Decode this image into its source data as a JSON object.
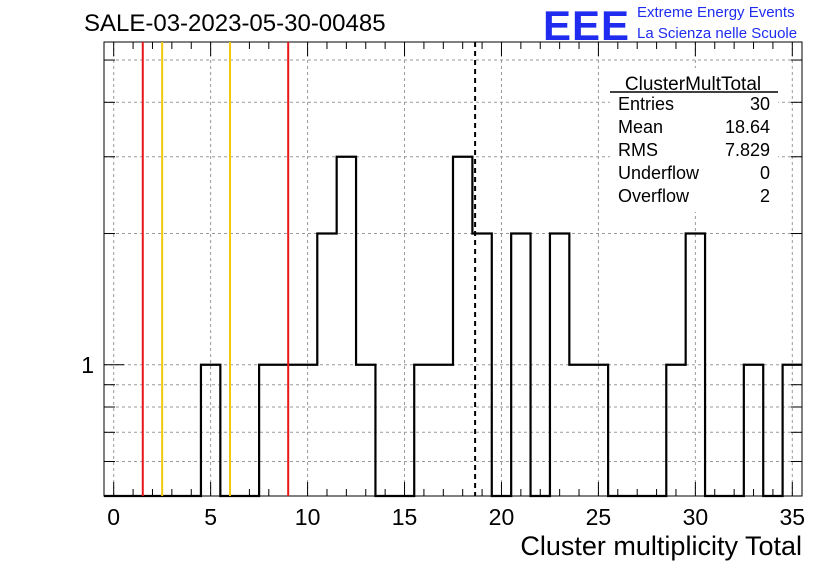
{
  "header": {
    "title": "SALE-03-2023-05-30-00485",
    "logo_text": "EEE",
    "logo_line1": "Extreme Energy Events",
    "logo_line2": "La Scienza nelle Scuole",
    "logo_color": "#1f2cf0"
  },
  "stats_box": {
    "name": "ClusterMultTotal",
    "rows": [
      {
        "label": "Entries",
        "value": "30"
      },
      {
        "label": "Mean",
        "value": "18.64"
      },
      {
        "label": "RMS",
        "value": "7.829"
      },
      {
        "label": "Underflow",
        "value": "0"
      },
      {
        "label": "Overflow",
        "value": "2"
      }
    ]
  },
  "chart_data": {
    "type": "histogram",
    "title": "SALE-03-2023-05-30-00485",
    "xlabel": "Cluster multiplicity Total",
    "ylabel": "",
    "x_range": [
      -0.5,
      35.5
    ],
    "y_scale": "log",
    "y_range": [
      0.5,
      5.5
    ],
    "bin_edges_start": -0.5,
    "bin_width": 1,
    "counts": [
      0,
      0,
      0,
      0,
      0,
      1,
      0,
      0,
      1,
      1,
      1,
      2,
      3,
      1,
      0,
      0,
      1,
      1,
      3,
      2,
      0,
      2,
      0,
      2,
      1,
      1,
      0,
      0,
      0,
      1,
      2,
      0,
      0,
      1,
      0,
      1
    ],
    "x_ticks": [
      0,
      5,
      10,
      15,
      20,
      25,
      30,
      35
    ],
    "y_tick_labels": [
      {
        "value": 1,
        "label": "1"
      }
    ],
    "y_minor_ticks": [
      0.6,
      0.7,
      0.8,
      0.9,
      2,
      3,
      4,
      5
    ],
    "grid": true,
    "reference_lines": [
      {
        "x": 1.5,
        "color": "#e8161b",
        "style": "solid"
      },
      {
        "x": 2.5,
        "color": "#f2c80f",
        "style": "solid"
      },
      {
        "x": 6.0,
        "color": "#f2c80f",
        "style": "solid"
      },
      {
        "x": 9.0,
        "color": "#e8161b",
        "style": "solid"
      },
      {
        "x": 18.64,
        "color": "#000000",
        "style": "dashed"
      }
    ]
  }
}
